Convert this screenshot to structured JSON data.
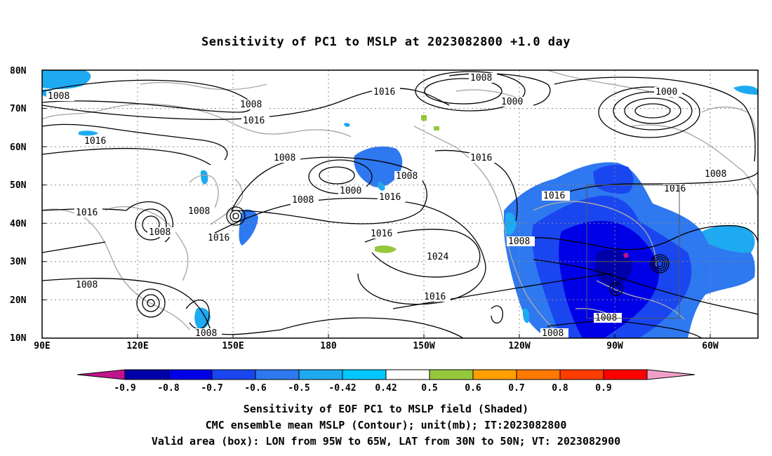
{
  "title": "Sensitivity of PC1 to MSLP at 2023082800 +1.0 day",
  "lat_labels": [
    "80N",
    "70N",
    "60N",
    "50N",
    "40N",
    "30N",
    "20N",
    "10N"
  ],
  "lon_labels": [
    "90E",
    "120E",
    "150E",
    "180",
    "150W",
    "120W",
    "90W",
    "60W"
  ],
  "colorbar": {
    "ticks": [
      "-0.9",
      "-0.8",
      "-0.7",
      "-0.6",
      "-0.5",
      "-0.42",
      "0.42",
      "0.5",
      "0.6",
      "0.7",
      "0.8",
      "0.9"
    ],
    "colors": [
      "#c0148c",
      "#0000a8",
      "#0000e6",
      "#1a46f0",
      "#2e78f0",
      "#1eaaf0",
      "#00c8ff",
      "#ffffff",
      "#96c83c",
      "#ffa000",
      "#ff7800",
      "#ff3c00",
      "#ff0000",
      "#f0a0c8"
    ]
  },
  "contour_labels": [
    "1008",
    "1000",
    "1008",
    "1016",
    "1000",
    "1008",
    "1016",
    "1008",
    "1016",
    "1008",
    "1000",
    "1008",
    "1016",
    "1016",
    "1016",
    "1016",
    "1008",
    "1016",
    "1008",
    "1008",
    "1016",
    "1024",
    "1016",
    "1008",
    "1016",
    "1008",
    "1008",
    "1008"
  ],
  "box": {
    "lon": [
      "95W",
      "65W"
    ],
    "lat": [
      "30N",
      "50N"
    ]
  },
  "captions": [
    "Sensitivity of EOF PC1 to MSLP field (Shaded)",
    "CMC ensemble mean MSLP (Contour); unit(mb); IT:2023082800",
    "Valid area (box): LON from 95W to 65W, LAT from 30N to 50N; VT: 2023082900"
  ]
}
